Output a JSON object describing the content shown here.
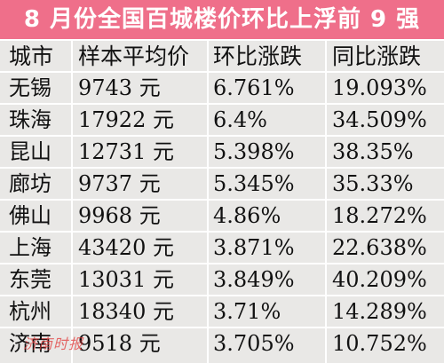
{
  "title": "8 月份全国百城楼价环比上浮前 9 强",
  "headers": [
    "城市",
    "样本平均价",
    "环比涨跌",
    "同比涨跌"
  ],
  "rows": [
    [
      "无锡",
      "9743 元",
      "6.761%",
      "19.093%"
    ],
    [
      "珠海",
      "17922 元",
      "6.4%",
      "34.509%"
    ],
    [
      "昆山",
      "12731 元",
      "5.398%",
      "38.35%"
    ],
    [
      "廊坊",
      "9737 元",
      "5.345%",
      "35.33%"
    ],
    [
      "佛山",
      "9968 元",
      "4.86%",
      "18.272%"
    ],
    [
      "上海",
      "43420 元",
      "3.871%",
      "22.638%"
    ],
    [
      "东莞",
      "13031 元",
      "3.849%",
      "40.209%"
    ],
    [
      "杭州",
      "18340 元",
      "3.71%",
      "14.289%"
    ],
    [
      "济南",
      "9518 元",
      "3.705%",
      "10.752%"
    ]
  ],
  "watermark": "济南时报",
  "colors": {
    "title_background": "#ef6f8a",
    "title_text": "#ffffff",
    "table_background": "#e9e8e6",
    "grid_lines": "#ffffff",
    "watermark": "#e23b3b"
  }
}
